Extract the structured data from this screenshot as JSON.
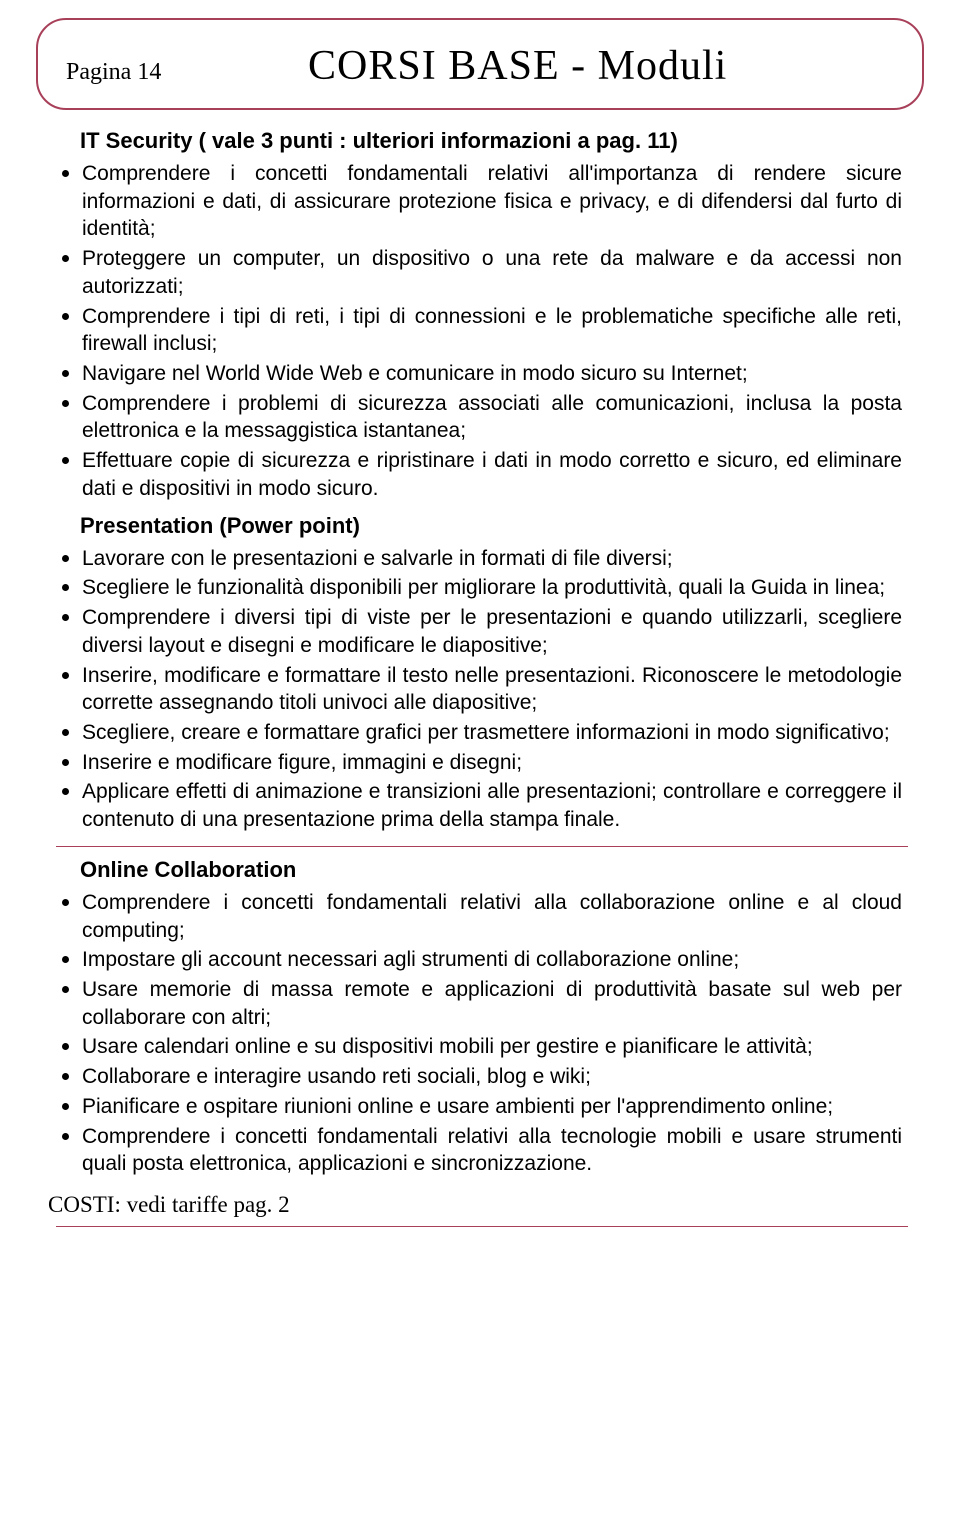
{
  "colors": {
    "border": "#a8405a",
    "text": "#000000",
    "background": "#ffffff"
  },
  "header": {
    "page_label": "Pagina 14",
    "title": "CORSI BASE - Moduli"
  },
  "section1": {
    "title": "IT Security ( vale 3 punti : ulteriori informazioni a pag. 11)",
    "items": [
      "Comprendere i concetti fondamentali relativi all'importanza di rendere sicure informazioni e dati, di assicurare protezione fisica e privacy, e di difendersi dal furto di identità;",
      "Proteggere un computer, un dispositivo o una rete da malware e da accessi non autorizzati;",
      "Comprendere i tipi di reti, i tipi di connessioni e le problematiche specifiche alle reti, firewall inclusi;",
      "Navigare nel World Wide Web e comunicare in modo sicuro su Internet;",
      "Comprendere i problemi di sicurezza associati alle comunicazioni, inclusa la posta elettronica e la messaggistica istantanea;",
      "Effettuare copie di sicurezza e ripristinare i dati in modo corretto e sicuro, ed eliminare dati e dispositivi in modo sicuro."
    ]
  },
  "section2": {
    "title": "Presentation (Power point)",
    "items": [
      "Lavorare con le presentazioni e salvarle in formati di file diversi;",
      "Scegliere le funzionalità disponibili per migliorare la produttività, quali la Guida in linea;",
      "Comprendere i diversi tipi di viste per le presentazioni e quando utilizzarli, scegliere diversi layout e disegni e modificare le diapositive;",
      "Inserire, modificare e formattare il testo nelle presentazioni. Riconoscere le metodologie corrette assegnando titoli univoci alle diapositive;",
      "Scegliere, creare e formattare grafici per trasmettere informazioni in modo significativo;",
      "Inserire e modificare figure, immagini e disegni;",
      "Applicare effetti di animazione e transizioni alle presentazioni; controllare e correggere il contenuto di una presentazione prima della stampa finale."
    ]
  },
  "section3": {
    "title": "Online Collaboration",
    "items": [
      "Comprendere i concetti fondamentali relativi alla collaborazione online e al cloud computing;",
      "Impostare gli account necessari agli strumenti di collaborazione online;",
      "Usare memorie di massa remote e applicazioni di produttività basate sul web per collaborare con altri;",
      "Usare calendari online e su dispositivi mobili per gestire e pianificare le attività;",
      "Collaborare e interagire usando reti sociali, blog e wiki;",
      "Pianificare e ospitare riunioni online e usare ambienti per l'apprendimento online;",
      "Comprendere i concetti fondamentali relativi alla tecnologie mobili e usare strumenti quali posta elettronica, applicazioni e sincronizzazione."
    ]
  },
  "footer": {
    "costi": "COSTI:  vedi tariffe pag. 2"
  }
}
